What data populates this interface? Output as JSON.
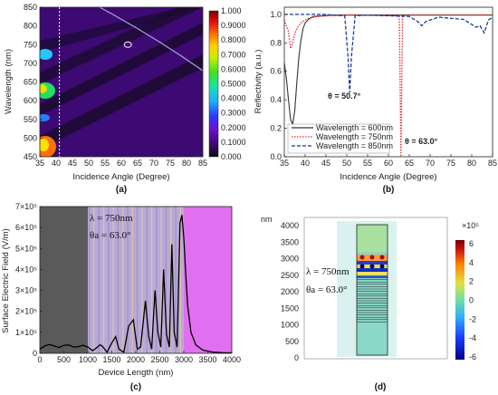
{
  "chart_data": [
    {
      "panel": "(a)",
      "type": "heatmap",
      "xlabel": "Incidence Angle (Degree)",
      "ylabel": "Wavelength (nm)",
      "xlim": [
        35,
        85
      ],
      "ylim": [
        450,
        850
      ],
      "xticks": [
        "35",
        "40",
        "45",
        "50",
        "55",
        "60",
        "65",
        "70",
        "75",
        "80",
        "85"
      ],
      "yticks": [
        "450",
        "500",
        "550",
        "600",
        "650",
        "700",
        "750",
        "800",
        "850"
      ],
      "colorbar_ticks": [
        "1.000",
        "0.9000",
        "0.8000",
        "0.7000",
        "0.6000",
        "0.5000",
        "0.4000",
        "0.3000",
        "0.2000",
        "0.1000",
        "0.000"
      ],
      "dashed_line_x": 41,
      "marker": {
        "x": 62,
        "y": 750
      }
    },
    {
      "panel": "(b)",
      "type": "line",
      "xlabel": "Incidence Angle (Degree)",
      "ylabel": "Reflectivity (a.u.)",
      "xlim": [
        35,
        85
      ],
      "ylim": [
        0,
        1.05
      ],
      "xticks": [
        "35",
        "40",
        "45",
        "50",
        "55",
        "60",
        "65",
        "70",
        "75",
        "80",
        "85"
      ],
      "yticks": [
        "0.0",
        "0.2",
        "0.4",
        "0.6",
        "0.8",
        "1.0"
      ],
      "legend_position": "bottom-right",
      "series": [
        {
          "name": "Wavelength = 600nm",
          "color": "#333333",
          "style": "solid",
          "x": [
            35,
            35.5,
            36,
            36.5,
            37,
            37.5,
            38,
            38.5,
            39,
            39.5,
            40,
            41,
            42,
            44,
            46,
            85
          ],
          "y": [
            0.66,
            0.55,
            0.4,
            0.26,
            0.23,
            0.32,
            0.52,
            0.7,
            0.82,
            0.9,
            0.94,
            0.97,
            0.985,
            0.99,
            0.995,
            0.995
          ]
        },
        {
          "name": "Wavelength = 750nm",
          "color": "#e8262a",
          "style": "dotted",
          "x": [
            35,
            36,
            36.5,
            37,
            37.5,
            38,
            39,
            40,
            41,
            43,
            46,
            50,
            62.6,
            63,
            63.4,
            65,
            85
          ],
          "y": [
            0.96,
            0.88,
            0.76,
            0.8,
            0.86,
            0.9,
            0.94,
            0.96,
            0.975,
            0.985,
            0.99,
            0.995,
            0.99,
            0.0,
            0.99,
            0.995,
            0.995
          ]
        },
        {
          "name": "Wavelength = 850nm",
          "color": "#1a3a9c",
          "style": "dashed",
          "x": [
            35,
            44,
            49.5,
            50.3,
            50.7,
            51.1,
            52,
            55,
            60,
            65,
            67,
            68,
            69,
            72,
            78,
            80,
            81,
            82,
            83,
            84,
            85
          ],
          "y": [
            1.0,
            1.0,
            0.99,
            0.7,
            0.45,
            0.7,
            0.99,
            0.995,
            0.99,
            0.985,
            0.95,
            0.92,
            0.95,
            0.98,
            0.965,
            0.93,
            0.91,
            0.92,
            0.87,
            0.96,
            0.98
          ]
        }
      ],
      "annotations": [
        {
          "text": "θ = 50.7°",
          "color": "#1a3a9c"
        },
        {
          "text": "θ = 63.0°",
          "color": "#e8262a"
        }
      ]
    },
    {
      "panel": "(c)",
      "type": "line",
      "xlabel": "Device Length (nm)",
      "ylabel": "Surface Electric Field (V/m)",
      "xlim": [
        0,
        4000
      ],
      "ylim": [
        0,
        700000
      ],
      "xticks": [
        "0",
        "500",
        "1000",
        "1500",
        "2000",
        "2500",
        "3000",
        "3500",
        "4000"
      ],
      "yticks": [
        "0",
        "1×10⁵",
        "2×10⁵",
        "3×10⁵",
        "4×10⁵",
        "5×10⁵",
        "6×10⁵",
        "7×10⁵"
      ],
      "annotation_lines": [
        "λ = 750nm",
        "θa = 63.0°"
      ],
      "regions": [
        {
          "from": 0,
          "to": 1000,
          "color": "#5a5a5a"
        },
        {
          "from": 1000,
          "to": 3000,
          "color": "#b8a9d6"
        },
        {
          "from": 3000,
          "to": 4000,
          "color": "#e070f0"
        }
      ],
      "series": [
        {
          "color": "#000000",
          "x": [
            0,
            100,
            200,
            300,
            400,
            500,
            600,
            700,
            800,
            900,
            1000,
            1100,
            1200,
            1250,
            1300,
            1400,
            1500,
            1580,
            1650,
            1750,
            1850,
            1950,
            2030,
            2100,
            2200,
            2270,
            2330,
            2400,
            2460,
            2520,
            2580,
            2640,
            2700,
            2750,
            2800,
            2860,
            2920,
            2960,
            3000,
            3040,
            3080,
            3150,
            3250,
            3400,
            3600,
            3800,
            4000
          ],
          "y": [
            20000,
            35000,
            42000,
            35000,
            28000,
            38000,
            40000,
            30000,
            32000,
            38000,
            30000,
            12000,
            30000,
            40000,
            35000,
            5000,
            50000,
            80000,
            20000,
            5000,
            130000,
            160000,
            20000,
            30000,
            250000,
            80000,
            20000,
            300000,
            100000,
            30000,
            400000,
            90000,
            30000,
            520000,
            100000,
            30000,
            620000,
            660000,
            550000,
            380000,
            230000,
            100000,
            40000,
            15000,
            6000,
            3000,
            2000
          ]
        }
      ]
    },
    {
      "panel": "(d)",
      "type": "heatmap",
      "ylabel_unit": "nm",
      "ylim": [
        0,
        4000
      ],
      "yticks": [
        "0",
        "500",
        "1000",
        "1500",
        "2000",
        "2500",
        "3000",
        "3500",
        "4000"
      ],
      "annotation_lines": [
        "λ = 750nm",
        "θa = 63.0°"
      ],
      "colorbar_title": "×10⁵",
      "colorbar_ticks": [
        "6",
        "4",
        "2",
        "0",
        "-2",
        "-4",
        "-6"
      ]
    }
  ],
  "panel_labels": [
    "(a)",
    "(b)",
    "(c)",
    "(d)"
  ]
}
